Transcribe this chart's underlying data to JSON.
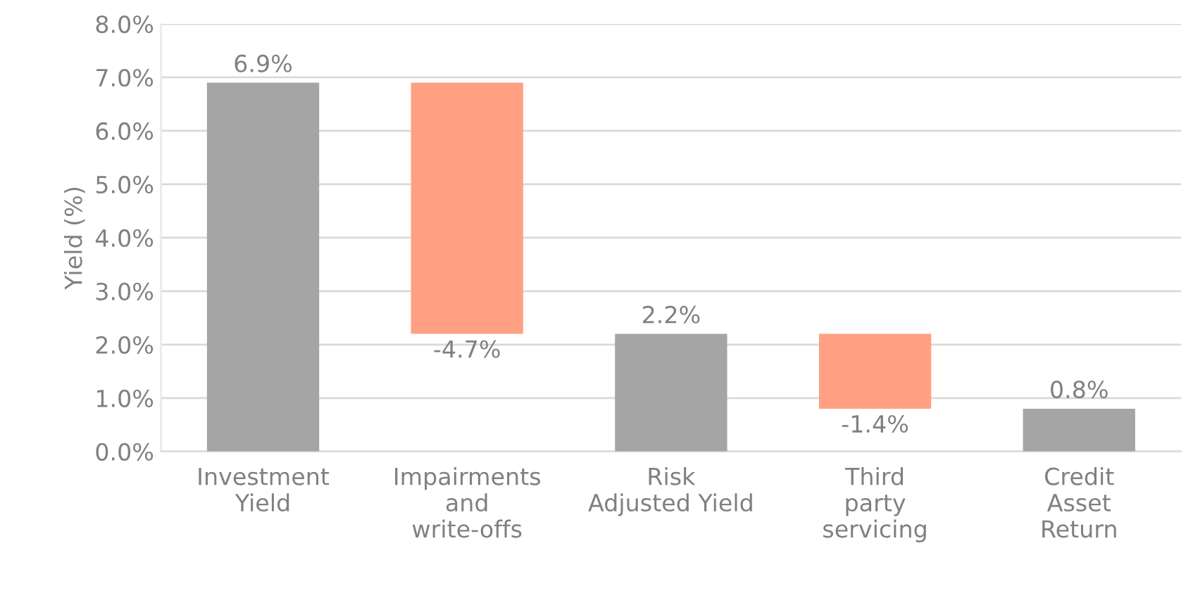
{
  "chart_data": {
    "type": "bar",
    "ylabel": "Yield (%)",
    "categories": [
      "Investment\nYield",
      "Impairments\nand\nwrite-offs",
      "Risk\nAdjusted Yield",
      "Third\nparty\nservicing",
      "Credit\nAsset\nReturn"
    ],
    "values": [
      6.9,
      -4.7,
      2.2,
      -1.4,
      0.8
    ],
    "base": [
      0,
      6.9,
      0,
      2.2,
      0
    ],
    "colors": [
      "#a5a5a5",
      "#ffa083",
      "#a5a5a5",
      "#ffa083",
      "#a5a5a5"
    ],
    "value_labels": [
      "6.9%",
      "-4.7%",
      "2.2%",
      "-1.4%",
      "0.8%"
    ],
    "ylim": [
      0,
      8
    ],
    "yticks": [
      {
        "value": 0,
        "label": "0.0%"
      },
      {
        "value": 1,
        "label": "1.0%"
      },
      {
        "value": 2,
        "label": "2.0%"
      },
      {
        "value": 3,
        "label": "3.0%"
      },
      {
        "value": 4,
        "label": "4.0%"
      },
      {
        "value": 5,
        "label": "5.0%"
      },
      {
        "value": 6,
        "label": "6.0%"
      },
      {
        "value": 7,
        "label": "7.0%"
      },
      {
        "value": 8,
        "label": "8.0%"
      }
    ],
    "grid": "y",
    "legend": false
  }
}
